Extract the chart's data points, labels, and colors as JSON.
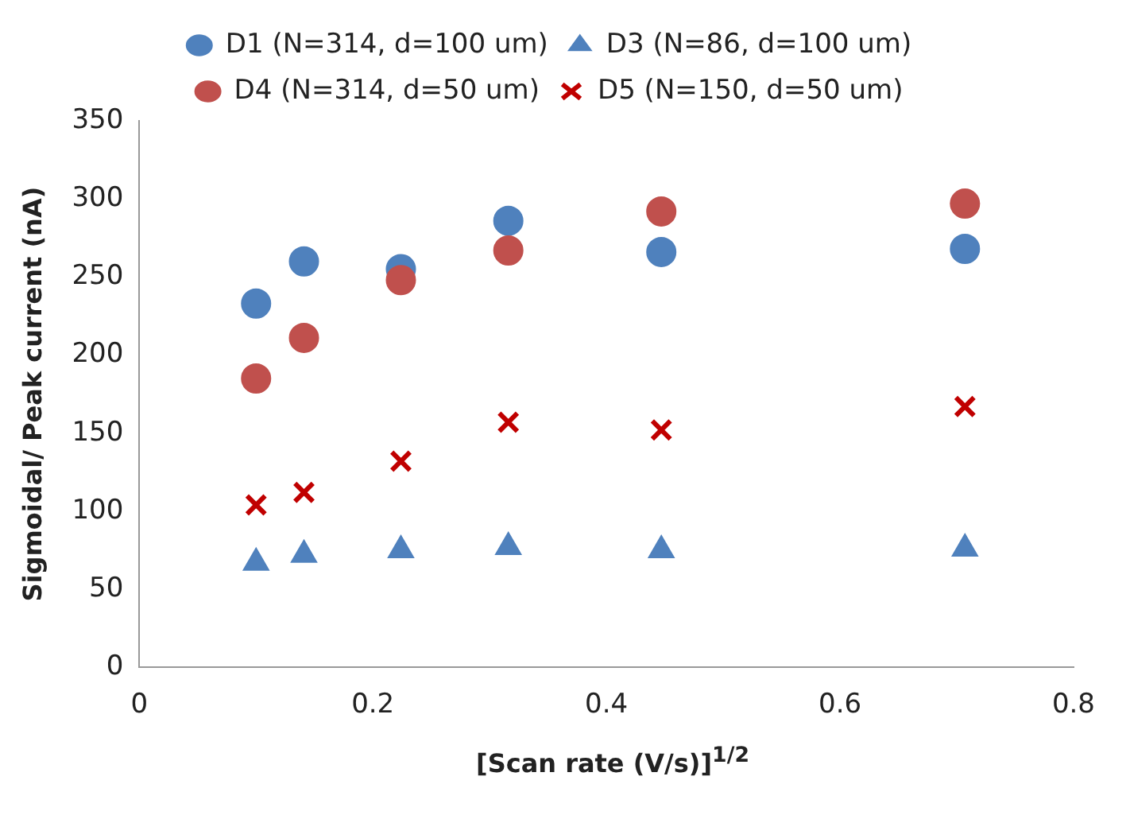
{
  "chart_data": {
    "type": "scatter",
    "xlabel": "[Scan rate (V/s)]$^{1/2}$",
    "ylabel": "Sigmoidal/ Peak current (nA)",
    "x": [
      0.1,
      0.141,
      0.224,
      0.316,
      0.447,
      0.707
    ],
    "series": [
      {
        "name": "D1 (N=314, d=100 um)",
        "color": "#4f81bd",
        "marker": "circle",
        "values": [
          233,
          260,
          255,
          286,
          266,
          268
        ]
      },
      {
        "name": "D3 (N=86, d=100 um)",
        "color": "#4f81bd",
        "marker": "triangle",
        "values": [
          67,
          72,
          75,
          77,
          75,
          76
        ]
      },
      {
        "name": "D4 (N=314, d=50 um)",
        "color": "#c0504d",
        "marker": "circle",
        "values": [
          185,
          211,
          248,
          267,
          292,
          297
        ]
      },
      {
        "name": "D5 (N=150, d=50 um)",
        "color": "#c00000",
        "marker": "cross",
        "values": [
          104,
          112,
          132,
          157,
          152,
          167
        ]
      }
    ],
    "xlim": [
      0,
      0.8
    ],
    "xticks": [
      0,
      0.2,
      0.4,
      0.6,
      0.8
    ],
    "ylim": [
      0,
      350
    ],
    "yticks": [
      0,
      50,
      100,
      150,
      200,
      250,
      300,
      350
    ],
    "grid": false,
    "legend": "top"
  }
}
